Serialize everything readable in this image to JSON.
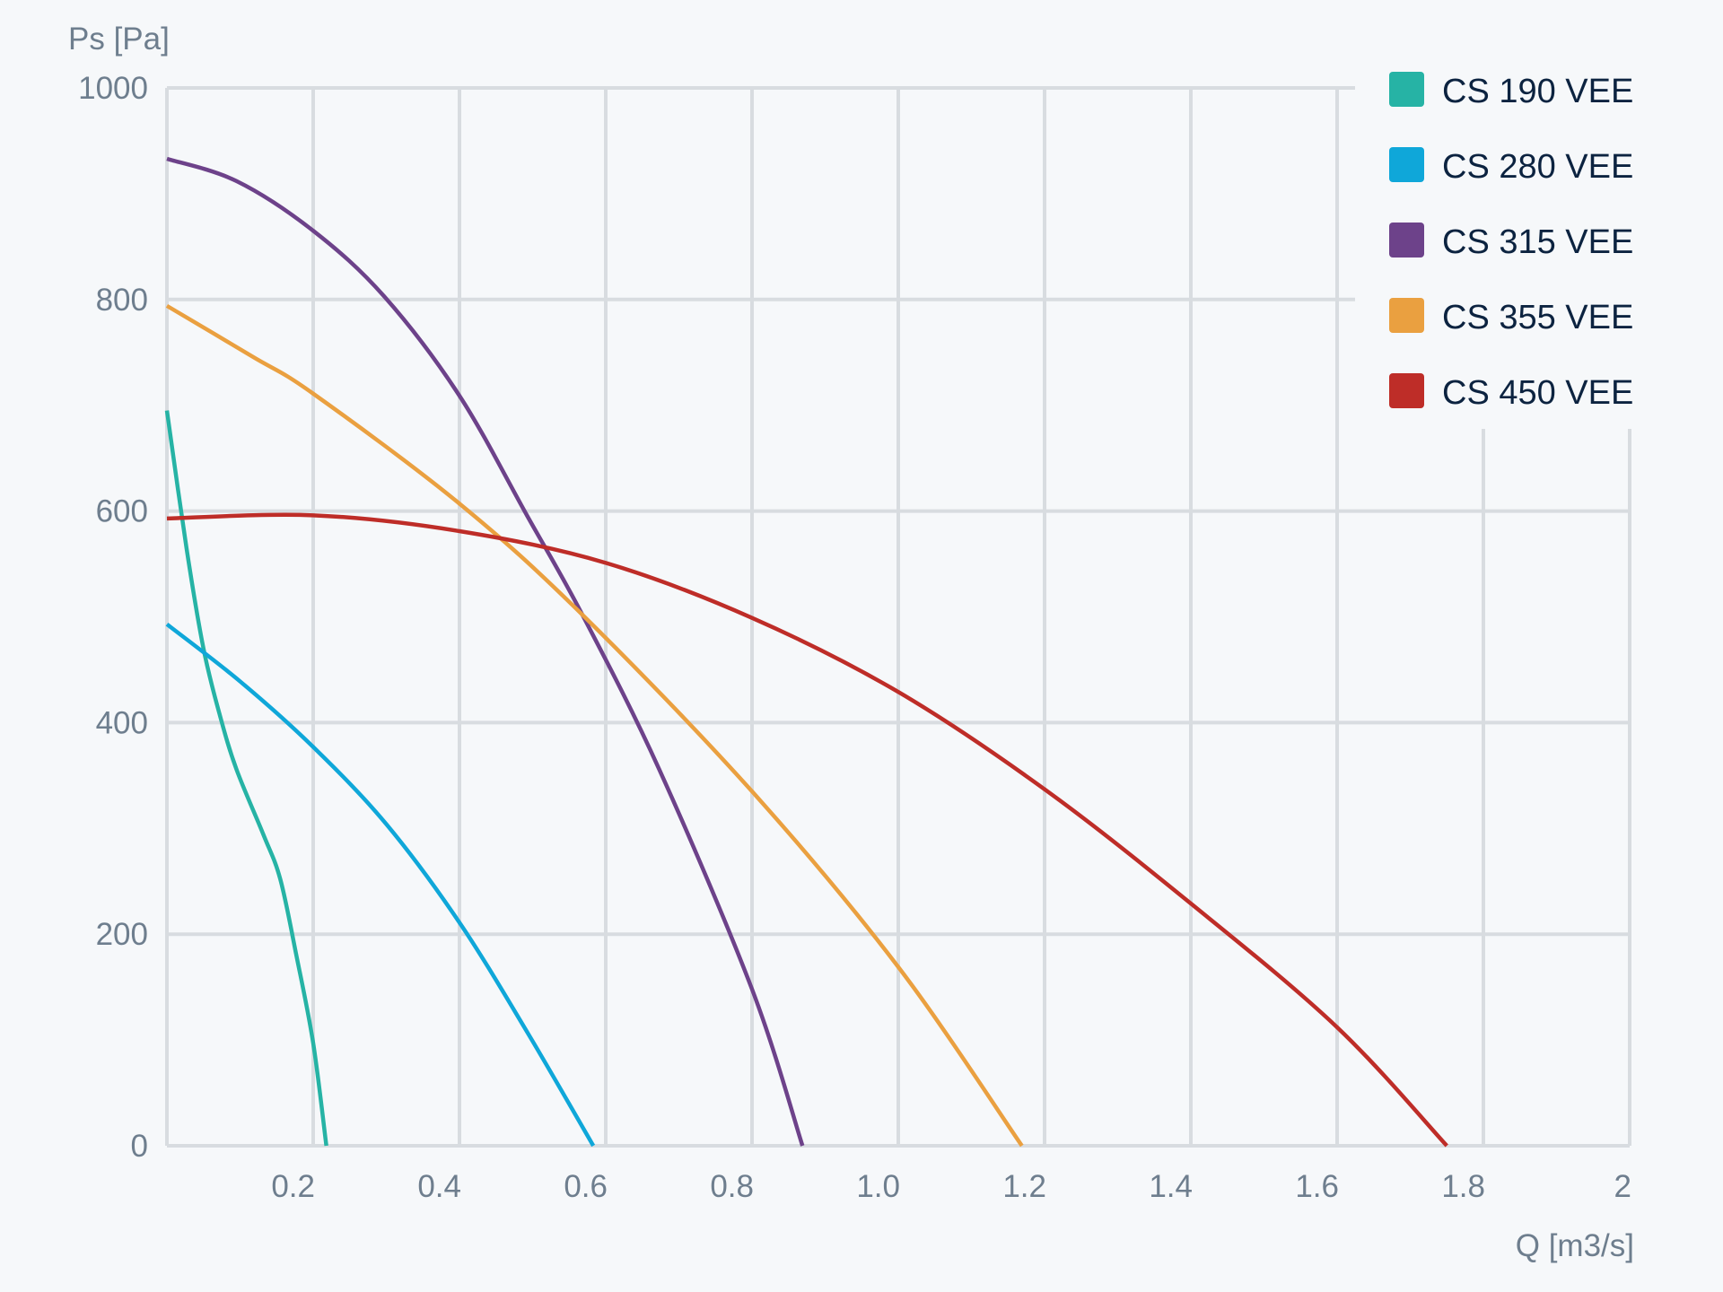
{
  "chart_data": {
    "type": "line",
    "title": "",
    "xlabel": "Q [m3/s]",
    "ylabel": "Ps [Pa]",
    "xlim": [
      0,
      2
    ],
    "ylim": [
      0,
      1000
    ],
    "x_ticks": [
      "0.2",
      "0.4",
      "0.6",
      "0.8",
      "1.0",
      "1.2",
      "1.4",
      "1.6",
      "1.8",
      "2"
    ],
    "x_tick_values": [
      0.2,
      0.4,
      0.6,
      0.8,
      1.0,
      1.2,
      1.4,
      1.6,
      1.8,
      2.0
    ],
    "y_ticks": [
      "0",
      "200",
      "400",
      "600",
      "800",
      "1000"
    ],
    "y_tick_values": [
      0,
      200,
      400,
      600,
      800,
      1000
    ],
    "grid": true,
    "legend_position": "top-right",
    "series": [
      {
        "name": "CS 190 VEE",
        "color": "#26b3a5",
        "x": [
          0,
          0.027,
          0.05,
          0.072,
          0.095,
          0.132,
          0.155,
          0.177,
          0.2,
          0.218
        ],
        "y": [
          695,
          564,
          470,
          408,
          356,
          294,
          252,
          180,
          97,
          0
        ]
      },
      {
        "name": "CS 280 VEE",
        "color": "#0fa7d9",
        "x": [
          0,
          0.1,
          0.2,
          0.3,
          0.4,
          0.493,
          0.583
        ],
        "y": [
          493,
          439,
          377,
          304,
          211,
          107,
          0
        ]
      },
      {
        "name": "CS 315 VEE",
        "color": "#6d428a",
        "x": [
          0,
          0.095,
          0.2,
          0.297,
          0.4,
          0.493,
          0.568,
          0.673,
          0.8,
          0.869
        ],
        "y": [
          933,
          912,
          865,
          803,
          709,
          595,
          502,
          356,
          148,
          0
        ]
      },
      {
        "name": "CS 355 VEE",
        "color": "#eaa040",
        "x": [
          0,
          0.117,
          0.2,
          0.4,
          0.568,
          0.8,
          1.0,
          1.169
        ],
        "y": [
          794,
          746,
          711,
          607,
          502,
          335,
          169,
          0
        ]
      },
      {
        "name": "CS 450 VEE",
        "color": "#be2d28",
        "x": [
          0,
          0.2,
          0.4,
          0.6,
          0.8,
          1.0,
          1.2,
          1.4,
          1.6,
          1.75
        ],
        "y": [
          593,
          596,
          581,
          551,
          499,
          429,
          337,
          229,
          112,
          0
        ]
      }
    ]
  }
}
